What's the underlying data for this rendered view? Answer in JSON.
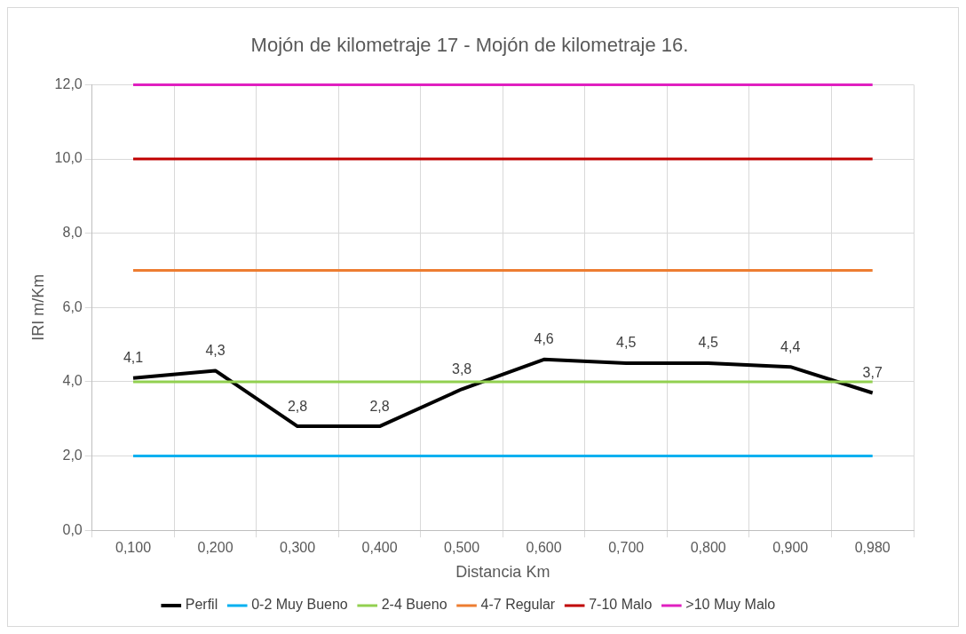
{
  "chart_data": {
    "type": "line",
    "title": "Mojón de kilometraje 17 - Mojón de kilometraje 16.",
    "xlabel": "Distancia Km",
    "ylabel": "IRI m/Km",
    "categories": [
      "0,100",
      "0,200",
      "0,300",
      "0,400",
      "0,500",
      "0,600",
      "0,700",
      "0,800",
      "0,900",
      "0,980"
    ],
    "series": [
      {
        "name": "Perfil",
        "color": "#000000",
        "values": [
          4.1,
          4.3,
          2.8,
          2.8,
          3.8,
          4.6,
          4.5,
          4.5,
          4.4,
          3.7
        ],
        "value_labels": [
          "4,1",
          "4,3",
          "2,8",
          "2,8",
          "3,8",
          "4,6",
          "4,5",
          "4,5",
          "4,4",
          "3,7"
        ]
      },
      {
        "name": "0-2 Muy Bueno",
        "color": "#00b0f0",
        "values": [
          2,
          2,
          2,
          2,
          2,
          2,
          2,
          2,
          2,
          2
        ]
      },
      {
        "name": "2-4 Bueno",
        "color": "#92d050",
        "values": [
          4,
          4,
          4,
          4,
          4,
          4,
          4,
          4,
          4,
          4
        ]
      },
      {
        "name": "4-7 Regular",
        "color": "#ed7d31",
        "values": [
          7,
          7,
          7,
          7,
          7,
          7,
          7,
          7,
          7,
          7
        ]
      },
      {
        "name": "7-10 Malo",
        "color": "#c00000",
        "values": [
          10,
          10,
          10,
          10,
          10,
          10,
          10,
          10,
          10,
          10
        ]
      },
      {
        "name": ">10 Muy Malo",
        "color": "#e020c0",
        "values": [
          12,
          12,
          12,
          12,
          12,
          12,
          12,
          12,
          12,
          12
        ]
      }
    ],
    "ylim": [
      0,
      12
    ],
    "yticks": [
      {
        "value": 0,
        "label": "0,0"
      },
      {
        "value": 2,
        "label": "2,0"
      },
      {
        "value": 4,
        "label": "4,0"
      },
      {
        "value": 6,
        "label": "6,0"
      },
      {
        "value": 8,
        "label": "8,0"
      },
      {
        "value": 10,
        "label": "10,0"
      },
      {
        "value": 12,
        "label": "12,0"
      }
    ],
    "grid": true,
    "legend": "bottom",
    "marker": "none",
    "line_style": "solid"
  }
}
